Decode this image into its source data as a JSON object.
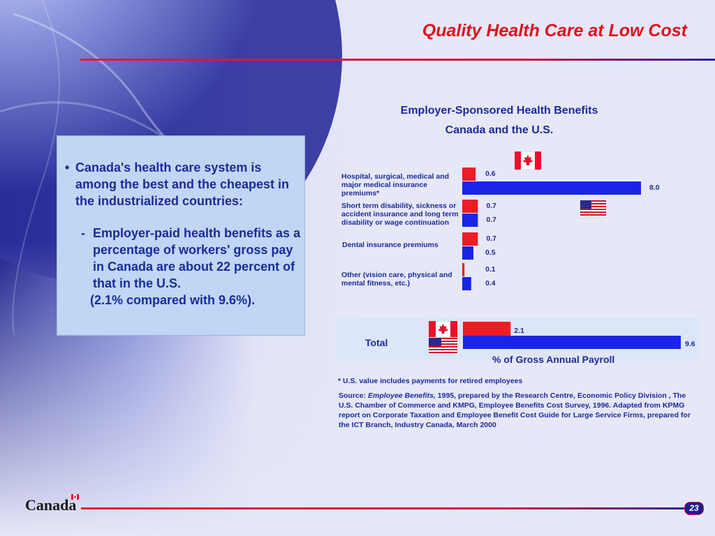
{
  "slide": {
    "title": "Quality Health Care at Low Cost",
    "page_number": "23",
    "wordmark": "Canada"
  },
  "bullets": {
    "main": "Canada's health care system is among the best and the cheapest in the industrialized countries:",
    "sub": "Employer-paid health benefits as a percentage of workers' gross pay in Canada are about 22 percent of that in the U.S.",
    "sub_paren": "(2.1% compared with 9.6%)."
  },
  "chart_data": {
    "type": "bar",
    "orientation": "horizontal",
    "title": "Employer-Sponsored Health Benefits",
    "subtitle": "Canada and the U.S.",
    "xlabel": "% of Gross Annual Payroll",
    "categories": [
      "Hospital, surgical, medical and major medical insurance premiums*",
      "Short term disability, sickness or accident insurance and long term disability or wage continuation",
      "Dental insurance premiums",
      "Other (vision care, physical and mental fitness, etc.)"
    ],
    "series": [
      {
        "name": "Canada",
        "color": "#ee1c25",
        "values": [
          0.6,
          0.7,
          0.7,
          0.1
        ],
        "labels": [
          "0.6",
          "0.7",
          "0.7",
          "0.1"
        ]
      },
      {
        "name": "U.S.",
        "color": "#1a24e6",
        "values": [
          8.0,
          0.7,
          0.5,
          0.4
        ],
        "labels": [
          "8.0",
          "0.7",
          "0.5",
          "0.4"
        ]
      }
    ],
    "total": {
      "label": "Total",
      "canada": 2.1,
      "canada_label": "2.1",
      "us": 9.6,
      "us_label": "9.6"
    },
    "legend": "flags (Canada, U.S.)"
  },
  "notes": {
    "footnote": "* U.S. value includes payments for retired employees",
    "source_prefix": "Source: ",
    "source_title": "Employee Benefits,",
    "source_rest": " 1995, prepared by the Research Centre, Economic Policy Division , The U.S. Chamber of Commerce and KMPG, Employee Benefits Cost Survey, 1996. Adapted from KPMG report on Corporate Taxation and Employee Benefit Cost Guide for Large Service Firms, prepared for the ICT Branch, Industry Canada, March 2000"
  },
  "colors": {
    "accent_red": "#e0101e",
    "text_blue": "#1d2a9a",
    "canada_bar": "#ee1c25",
    "us_bar": "#1a24e6"
  },
  "icons": [
    "canada-flag-icon",
    "us-flag-icon",
    "globe-graphic"
  ]
}
